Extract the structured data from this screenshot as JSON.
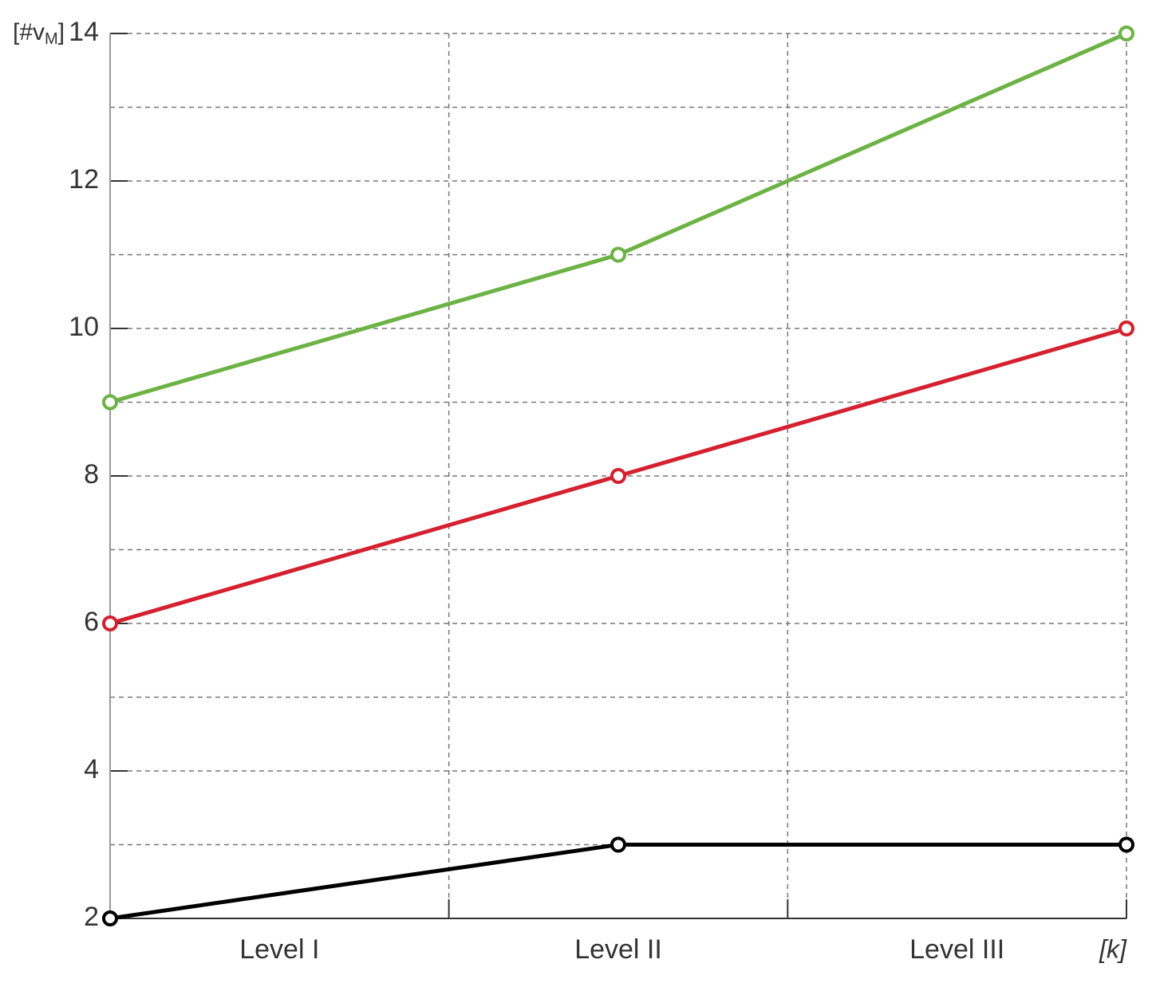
{
  "chart_data": {
    "type": "line",
    "y_label_parts": [
      "[#v",
      "M",
      "]"
    ],
    "x_label": "[k]",
    "categories": [
      "Level I",
      "Level II",
      "Level III"
    ],
    "x": [
      0,
      1.5,
      3
    ],
    "xlim": [
      0,
      3
    ],
    "xgrid": [
      1,
      2,
      3
    ],
    "ylim": [
      2,
      14
    ],
    "yticks": [
      2,
      4,
      6,
      8,
      10,
      12,
      14
    ],
    "yminor": [
      3,
      5,
      7,
      9,
      11,
      13
    ],
    "grid": true,
    "series": [
      {
        "name": "green",
        "color": "#6cb244",
        "values": [
          9,
          11,
          14
        ]
      },
      {
        "name": "red",
        "color": "#d5202f",
        "values": [
          6,
          8,
          10
        ]
      },
      {
        "name": "black",
        "color": "#000000",
        "values": [
          2,
          3,
          3
        ]
      }
    ]
  }
}
